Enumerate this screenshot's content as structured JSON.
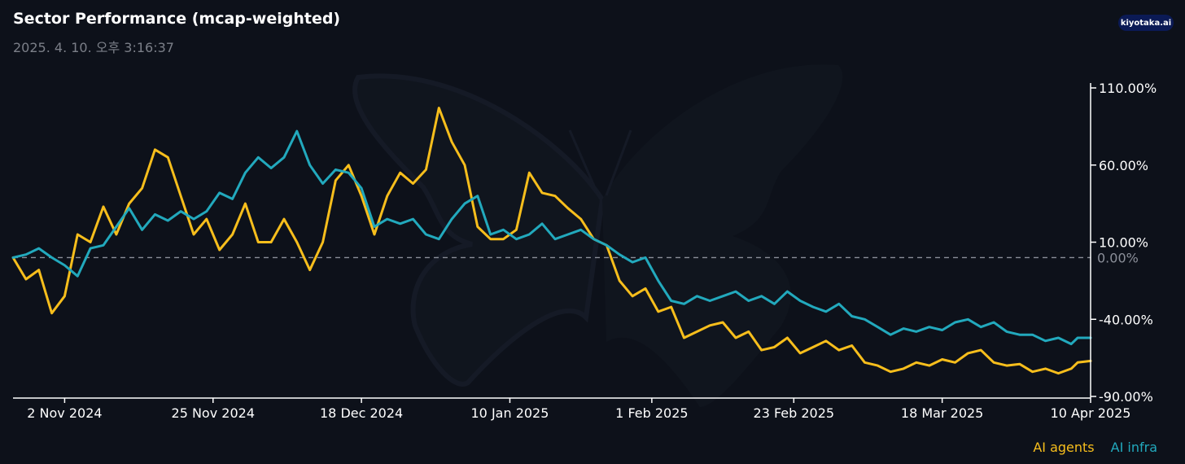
{
  "header": {
    "title": "Sector Performance (mcap-weighted)",
    "timestamp": "2025. 4. 10. 오후 3:16:37",
    "logo_text": "kiyotaka.ai"
  },
  "colors": {
    "ai_agents": "#f7be1c",
    "ai_infra": "#22a9bd",
    "background": "#0d111a",
    "zero_line": "#8b8f99"
  },
  "chart_data": {
    "type": "line",
    "title": "Sector Performance (mcap-weighted)",
    "x_ticks": [
      "2 Nov 2024",
      "25 Nov 2024",
      "18 Dec 2024",
      "10 Jan 2025",
      "1 Feb 2025",
      "23 Feb 2025",
      "18 Mar 2025",
      "10 Apr 2025"
    ],
    "x_range": [
      "2024-10-25",
      "2025-04-10"
    ],
    "y_ticks": [
      "110.00%",
      "60.00%",
      "10.00%",
      "-40.00%",
      "-90.00%"
    ],
    "y_tick_values": [
      110,
      60,
      10,
      -40,
      -90
    ],
    "ylim": [
      -90,
      110
    ],
    "zero_label": "0.00%",
    "legend_position": "bottom-right",
    "series": [
      {
        "name": "AI agents",
        "color": "#f7be1c",
        "points": [
          [
            "2024-10-25",
            0
          ],
          [
            "2024-10-27",
            -14
          ],
          [
            "2024-10-29",
            -8
          ],
          [
            "2024-10-31",
            -36
          ],
          [
            "2024-11-02",
            -25
          ],
          [
            "2024-11-04",
            15
          ],
          [
            "2024-11-06",
            10
          ],
          [
            "2024-11-08",
            33
          ],
          [
            "2024-11-10",
            15
          ],
          [
            "2024-11-12",
            35
          ],
          [
            "2024-11-14",
            45
          ],
          [
            "2024-11-16",
            70
          ],
          [
            "2024-11-18",
            65
          ],
          [
            "2024-11-20",
            40
          ],
          [
            "2024-11-22",
            15
          ],
          [
            "2024-11-24",
            25
          ],
          [
            "2024-11-26",
            5
          ],
          [
            "2024-11-28",
            15
          ],
          [
            "2024-11-30",
            35
          ],
          [
            "2024-12-02",
            10
          ],
          [
            "2024-12-04",
            10
          ],
          [
            "2024-12-06",
            25
          ],
          [
            "2024-12-08",
            10
          ],
          [
            "2024-12-10",
            -8
          ],
          [
            "2024-12-12",
            10
          ],
          [
            "2024-12-14",
            50
          ],
          [
            "2024-12-16",
            60
          ],
          [
            "2024-12-18",
            40
          ],
          [
            "2024-12-20",
            15
          ],
          [
            "2024-12-22",
            40
          ],
          [
            "2024-12-24",
            55
          ],
          [
            "2024-12-26",
            48
          ],
          [
            "2024-12-28",
            57
          ],
          [
            "2024-12-30",
            97
          ],
          [
            "2025-01-01",
            75
          ],
          [
            "2025-01-03",
            60
          ],
          [
            "2025-01-05",
            20
          ],
          [
            "2025-01-07",
            12
          ],
          [
            "2025-01-09",
            12
          ],
          [
            "2025-01-11",
            18
          ],
          [
            "2025-01-13",
            55
          ],
          [
            "2025-01-15",
            42
          ],
          [
            "2025-01-17",
            40
          ],
          [
            "2025-01-19",
            32
          ],
          [
            "2025-01-21",
            25
          ],
          [
            "2025-01-23",
            12
          ],
          [
            "2025-01-25",
            8
          ],
          [
            "2025-01-27",
            -15
          ],
          [
            "2025-01-29",
            -25
          ],
          [
            "2025-01-31",
            -20
          ],
          [
            "2025-02-02",
            -35
          ],
          [
            "2025-02-04",
            -32
          ],
          [
            "2025-02-06",
            -52
          ],
          [
            "2025-02-08",
            -48
          ],
          [
            "2025-02-10",
            -44
          ],
          [
            "2025-02-12",
            -42
          ],
          [
            "2025-02-14",
            -52
          ],
          [
            "2025-02-16",
            -48
          ],
          [
            "2025-02-18",
            -60
          ],
          [
            "2025-02-20",
            -58
          ],
          [
            "2025-02-22",
            -52
          ],
          [
            "2025-02-24",
            -62
          ],
          [
            "2025-02-26",
            -58
          ],
          [
            "2025-02-28",
            -54
          ],
          [
            "2025-03-02",
            -60
          ],
          [
            "2025-03-04",
            -57
          ],
          [
            "2025-03-06",
            -68
          ],
          [
            "2025-03-08",
            -70
          ],
          [
            "2025-03-10",
            -74
          ],
          [
            "2025-03-12",
            -72
          ],
          [
            "2025-03-14",
            -68
          ],
          [
            "2025-03-16",
            -70
          ],
          [
            "2025-03-18",
            -66
          ],
          [
            "2025-03-20",
            -68
          ],
          [
            "2025-03-22",
            -62
          ],
          [
            "2025-03-24",
            -60
          ],
          [
            "2025-03-26",
            -68
          ],
          [
            "2025-03-28",
            -70
          ],
          [
            "2025-03-30",
            -69
          ],
          [
            "2025-04-01",
            -74
          ],
          [
            "2025-04-03",
            -72
          ],
          [
            "2025-04-05",
            -75
          ],
          [
            "2025-04-07",
            -72
          ],
          [
            "2025-04-08",
            -68
          ],
          [
            "2025-04-10",
            -67
          ]
        ]
      },
      {
        "name": "AI infra",
        "color": "#22a9bd",
        "points": [
          [
            "2024-10-25",
            0
          ],
          [
            "2024-10-27",
            2
          ],
          [
            "2024-10-29",
            6
          ],
          [
            "2024-10-31",
            0
          ],
          [
            "2024-11-02",
            -5
          ],
          [
            "2024-11-04",
            -12
          ],
          [
            "2024-11-06",
            6
          ],
          [
            "2024-11-08",
            8
          ],
          [
            "2024-11-10",
            20
          ],
          [
            "2024-11-12",
            32
          ],
          [
            "2024-11-14",
            18
          ],
          [
            "2024-11-16",
            28
          ],
          [
            "2024-11-18",
            24
          ],
          [
            "2024-11-20",
            30
          ],
          [
            "2024-11-22",
            25
          ],
          [
            "2024-11-24",
            30
          ],
          [
            "2024-11-26",
            42
          ],
          [
            "2024-11-28",
            38
          ],
          [
            "2024-11-30",
            55
          ],
          [
            "2024-12-02",
            65
          ],
          [
            "2024-12-04",
            58
          ],
          [
            "2024-12-06",
            65
          ],
          [
            "2024-12-08",
            82
          ],
          [
            "2024-12-10",
            60
          ],
          [
            "2024-12-12",
            48
          ],
          [
            "2024-12-14",
            57
          ],
          [
            "2024-12-16",
            55
          ],
          [
            "2024-12-18",
            45
          ],
          [
            "2024-12-20",
            20
          ],
          [
            "2024-12-22",
            25
          ],
          [
            "2024-12-24",
            22
          ],
          [
            "2024-12-26",
            25
          ],
          [
            "2024-12-28",
            15
          ],
          [
            "2024-12-30",
            12
          ],
          [
            "2025-01-01",
            25
          ],
          [
            "2025-01-03",
            35
          ],
          [
            "2025-01-05",
            40
          ],
          [
            "2025-01-07",
            15
          ],
          [
            "2025-01-09",
            18
          ],
          [
            "2025-01-11",
            12
          ],
          [
            "2025-01-13",
            15
          ],
          [
            "2025-01-15",
            22
          ],
          [
            "2025-01-17",
            12
          ],
          [
            "2025-01-19",
            15
          ],
          [
            "2025-01-21",
            18
          ],
          [
            "2025-01-23",
            12
          ],
          [
            "2025-01-25",
            8
          ],
          [
            "2025-01-27",
            2
          ],
          [
            "2025-01-29",
            -3
          ],
          [
            "2025-01-31",
            0
          ],
          [
            "2025-02-02",
            -15
          ],
          [
            "2025-02-04",
            -28
          ],
          [
            "2025-02-06",
            -30
          ],
          [
            "2025-02-08",
            -25
          ],
          [
            "2025-02-10",
            -28
          ],
          [
            "2025-02-12",
            -25
          ],
          [
            "2025-02-14",
            -22
          ],
          [
            "2025-02-16",
            -28
          ],
          [
            "2025-02-18",
            -25
          ],
          [
            "2025-02-20",
            -30
          ],
          [
            "2025-02-22",
            -22
          ],
          [
            "2025-02-24",
            -28
          ],
          [
            "2025-02-26",
            -32
          ],
          [
            "2025-02-28",
            -35
          ],
          [
            "2025-03-02",
            -30
          ],
          [
            "2025-03-04",
            -38
          ],
          [
            "2025-03-06",
            -40
          ],
          [
            "2025-03-08",
            -45
          ],
          [
            "2025-03-10",
            -50
          ],
          [
            "2025-03-12",
            -46
          ],
          [
            "2025-03-14",
            -48
          ],
          [
            "2025-03-16",
            -45
          ],
          [
            "2025-03-18",
            -47
          ],
          [
            "2025-03-20",
            -42
          ],
          [
            "2025-03-22",
            -40
          ],
          [
            "2025-03-24",
            -45
          ],
          [
            "2025-03-26",
            -42
          ],
          [
            "2025-03-28",
            -48
          ],
          [
            "2025-03-30",
            -50
          ],
          [
            "2025-04-01",
            -50
          ],
          [
            "2025-04-03",
            -54
          ],
          [
            "2025-04-05",
            -52
          ],
          [
            "2025-04-07",
            -56
          ],
          [
            "2025-04-08",
            -52
          ],
          [
            "2025-04-10",
            -52
          ]
        ]
      }
    ]
  }
}
